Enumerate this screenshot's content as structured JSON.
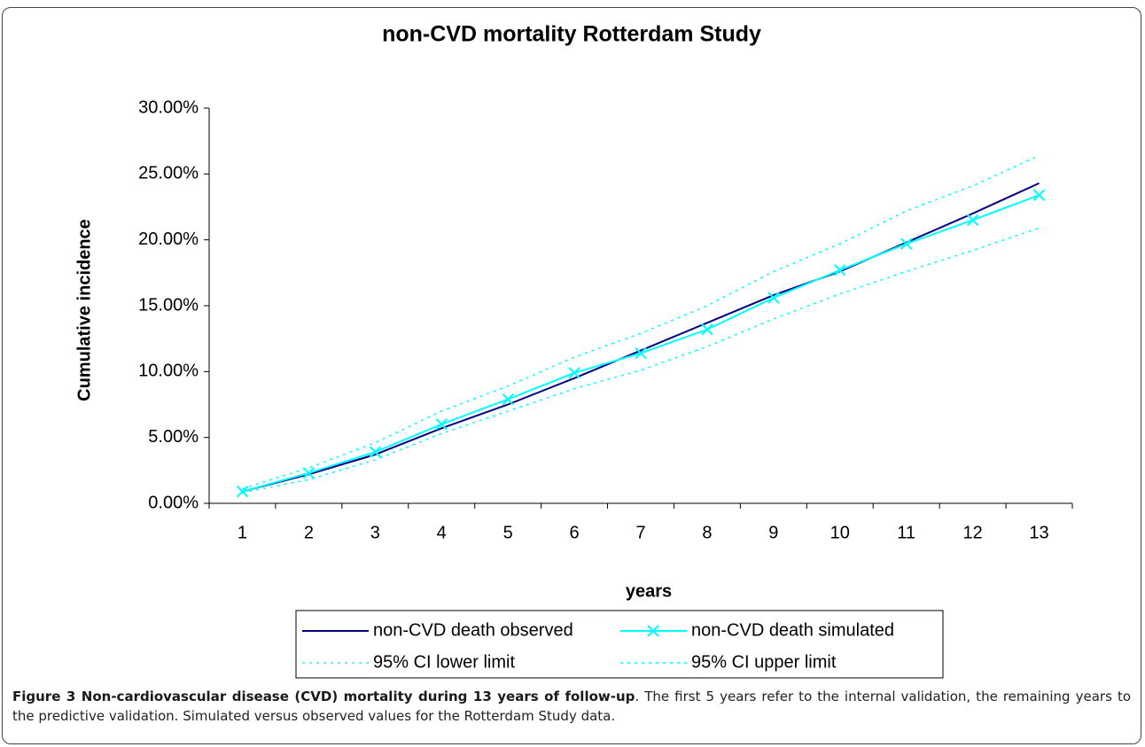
{
  "chart_data": {
    "type": "line",
    "title": "non-CVD mortality Rotterdam Study",
    "x_label": "years",
    "y_label": "Cumulative incidence",
    "categories": [
      "1",
      "2",
      "3",
      "4",
      "5",
      "6",
      "7",
      "8",
      "9",
      "10",
      "11",
      "12",
      "13"
    ],
    "series": [
      {
        "name": "non-CVD death observed",
        "color": "#000080",
        "dash": "solid",
        "marker": "none",
        "values": [
          0.9,
          2.2,
          3.7,
          5.7,
          7.5,
          9.5,
          11.6,
          13.7,
          15.8,
          17.6,
          19.8,
          22.0,
          24.3
        ]
      },
      {
        "name": "non-CVD death simulated",
        "color": "#00ffff",
        "dash": "solid",
        "marker": "x",
        "values": [
          0.9,
          2.3,
          3.9,
          6.0,
          7.9,
          9.9,
          11.4,
          13.2,
          15.6,
          17.7,
          19.7,
          21.5,
          23.4
        ]
      },
      {
        "name": "95% CI lower limit",
        "color": "#00ffff",
        "dash": "dotted",
        "marker": "none",
        "values": [
          0.8,
          1.8,
          3.3,
          5.3,
          7.0,
          8.7,
          10.1,
          11.9,
          14.0,
          15.9,
          17.6,
          19.2,
          20.9
        ]
      },
      {
        "name": "95% CI upper limit",
        "color": "#00ffff",
        "dash": "dotted",
        "marker": "none",
        "values": [
          1.1,
          2.7,
          4.6,
          7.0,
          8.9,
          11.1,
          12.9,
          15.0,
          17.6,
          19.7,
          22.2,
          24.1,
          26.4
        ]
      }
    ],
    "ylim": [
      0,
      30
    ],
    "yticks": [
      {
        "value": 0,
        "label": "0.00%"
      },
      {
        "value": 5,
        "label": "5.00%"
      },
      {
        "value": 10,
        "label": "10.00%"
      },
      {
        "value": 15,
        "label": "15.00%"
      },
      {
        "value": 20,
        "label": "20.00%"
      },
      {
        "value": 25,
        "label": "25.00%"
      },
      {
        "value": 30,
        "label": "30.00%"
      }
    ],
    "grid": false,
    "legend": "bottom"
  },
  "caption": {
    "label": "Figure 3 Non-cardiovascular disease (CVD) mortality during 13 years of follow-up",
    "text": ". The first 5 years refer to the internal validation, the remaining years to the predictive validation. Simulated versus observed values for the Rotterdam Study data."
  }
}
